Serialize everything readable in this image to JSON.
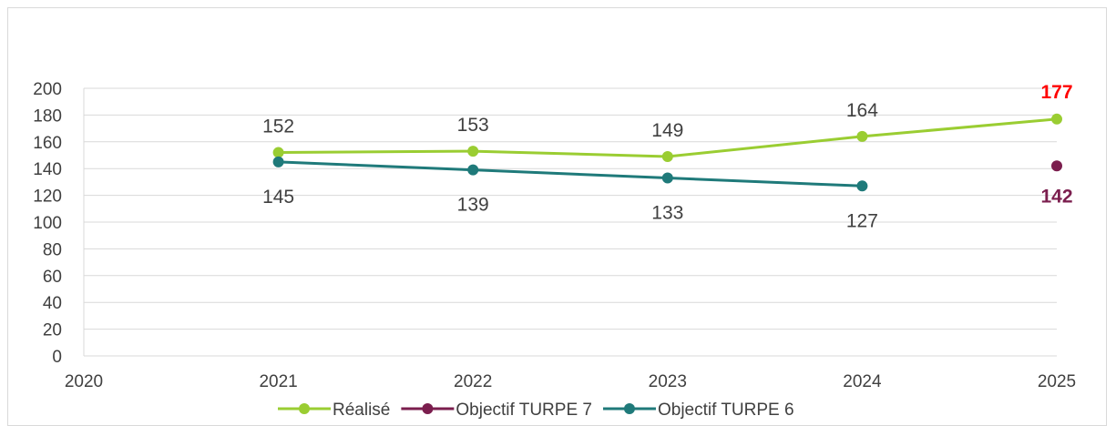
{
  "chart_data": {
    "type": "line",
    "x": [
      2020,
      2021,
      2022,
      2023,
      2024,
      2025
    ],
    "ylim": [
      0,
      200
    ],
    "yticks": [
      0,
      20,
      40,
      60,
      80,
      100,
      120,
      140,
      160,
      180,
      200
    ],
    "xticks": [
      "2020",
      "2021",
      "2022",
      "2023",
      "2024",
      "2025"
    ],
    "grid": true,
    "legend": "bottom",
    "series": [
      {
        "name": "Réalisé",
        "color": "#9acd32",
        "points": [
          [
            2021,
            152
          ],
          [
            2022,
            153
          ],
          [
            2023,
            149
          ],
          [
            2024,
            164
          ],
          [
            2025,
            177
          ]
        ],
        "labels": [
          "152",
          "153",
          "149",
          "164",
          "177"
        ],
        "label_position": "above",
        "last_label_color": "#ff0000"
      },
      {
        "name": "Objectif TURPE 7",
        "color": "#7b1e4e",
        "points": [
          [
            2025,
            142
          ]
        ],
        "labels": [
          "142"
        ],
        "label_position": "below",
        "last_label_color": "#7b1e4e"
      },
      {
        "name": "Objectif TURPE 6",
        "color": "#1f7a7a",
        "points": [
          [
            2021,
            145
          ],
          [
            2022,
            139
          ],
          [
            2023,
            133
          ],
          [
            2024,
            127
          ]
        ],
        "labels": [
          "145",
          "139",
          "133",
          "127"
        ],
        "label_position": "below",
        "last_label_color": null
      }
    ]
  }
}
